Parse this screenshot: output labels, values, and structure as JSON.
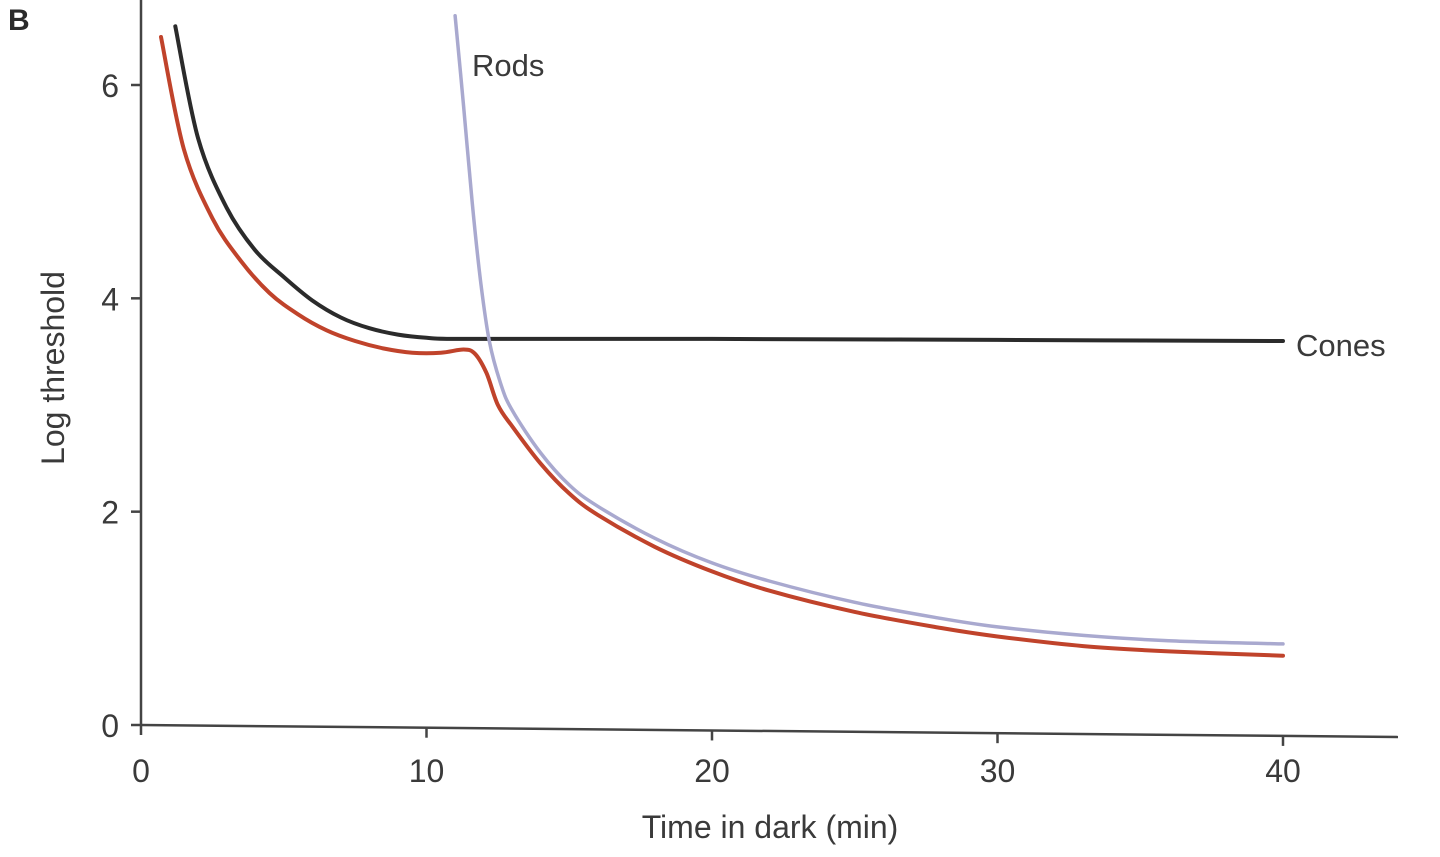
{
  "chart_data": {
    "type": "line",
    "panel_label": "B",
    "xlabel": "Time in dark (min)",
    "ylabel": "Log threshold",
    "xlim": [
      0,
      44
    ],
    "ylim": [
      0,
      6.75
    ],
    "x_ticks": [
      0,
      10,
      20,
      30,
      40
    ],
    "y_ticks": [
      0,
      2,
      4,
      6
    ],
    "grid": false,
    "legend": "none",
    "series": [
      {
        "name": "Cones",
        "color": "#2b2b2b",
        "labeled": true,
        "points": [
          [
            1.2,
            6.55
          ],
          [
            2,
            5.5
          ],
          [
            3,
            4.85
          ],
          [
            4,
            4.45
          ],
          [
            5,
            4.2
          ],
          [
            6,
            3.98
          ],
          [
            7,
            3.82
          ],
          [
            8,
            3.72
          ],
          [
            9,
            3.66
          ],
          [
            10,
            3.63
          ],
          [
            11,
            3.62
          ],
          [
            15,
            3.62
          ],
          [
            20,
            3.62
          ],
          [
            30,
            3.61
          ],
          [
            40,
            3.6
          ]
        ]
      },
      {
        "name": "Rods",
        "color": "#a9a9cf",
        "labeled": true,
        "points": [
          [
            11.0,
            6.65
          ],
          [
            11.3,
            5.8
          ],
          [
            11.6,
            4.9
          ],
          [
            11.9,
            4.15
          ],
          [
            12.2,
            3.6
          ],
          [
            12.6,
            3.2
          ],
          [
            13,
            2.95
          ],
          [
            14,
            2.55
          ],
          [
            15,
            2.25
          ],
          [
            16,
            2.05
          ],
          [
            18,
            1.75
          ],
          [
            20,
            1.52
          ],
          [
            22,
            1.35
          ],
          [
            25,
            1.15
          ],
          [
            28,
            1.0
          ],
          [
            30,
            0.92
          ],
          [
            33,
            0.84
          ],
          [
            36,
            0.79
          ],
          [
            40,
            0.76
          ]
        ]
      },
      {
        "name": "",
        "color": "#c0432b",
        "labeled": false,
        "points": [
          [
            0.7,
            6.45
          ],
          [
            1.5,
            5.4
          ],
          [
            2.5,
            4.75
          ],
          [
            3.5,
            4.35
          ],
          [
            4.5,
            4.05
          ],
          [
            5.5,
            3.85
          ],
          [
            6.5,
            3.7
          ],
          [
            7.5,
            3.6
          ],
          [
            8.5,
            3.53
          ],
          [
            9.5,
            3.49
          ],
          [
            10.5,
            3.49
          ],
          [
            11.3,
            3.52
          ],
          [
            11.7,
            3.48
          ],
          [
            12.1,
            3.3
          ],
          [
            12.5,
            3.0
          ],
          [
            13,
            2.8
          ],
          [
            14,
            2.45
          ],
          [
            15,
            2.17
          ],
          [
            16,
            1.97
          ],
          [
            18,
            1.67
          ],
          [
            20,
            1.44
          ],
          [
            22,
            1.26
          ],
          [
            25,
            1.06
          ],
          [
            28,
            0.91
          ],
          [
            30,
            0.83
          ],
          [
            33,
            0.74
          ],
          [
            36,
            0.69
          ],
          [
            40,
            0.65
          ]
        ]
      }
    ]
  }
}
